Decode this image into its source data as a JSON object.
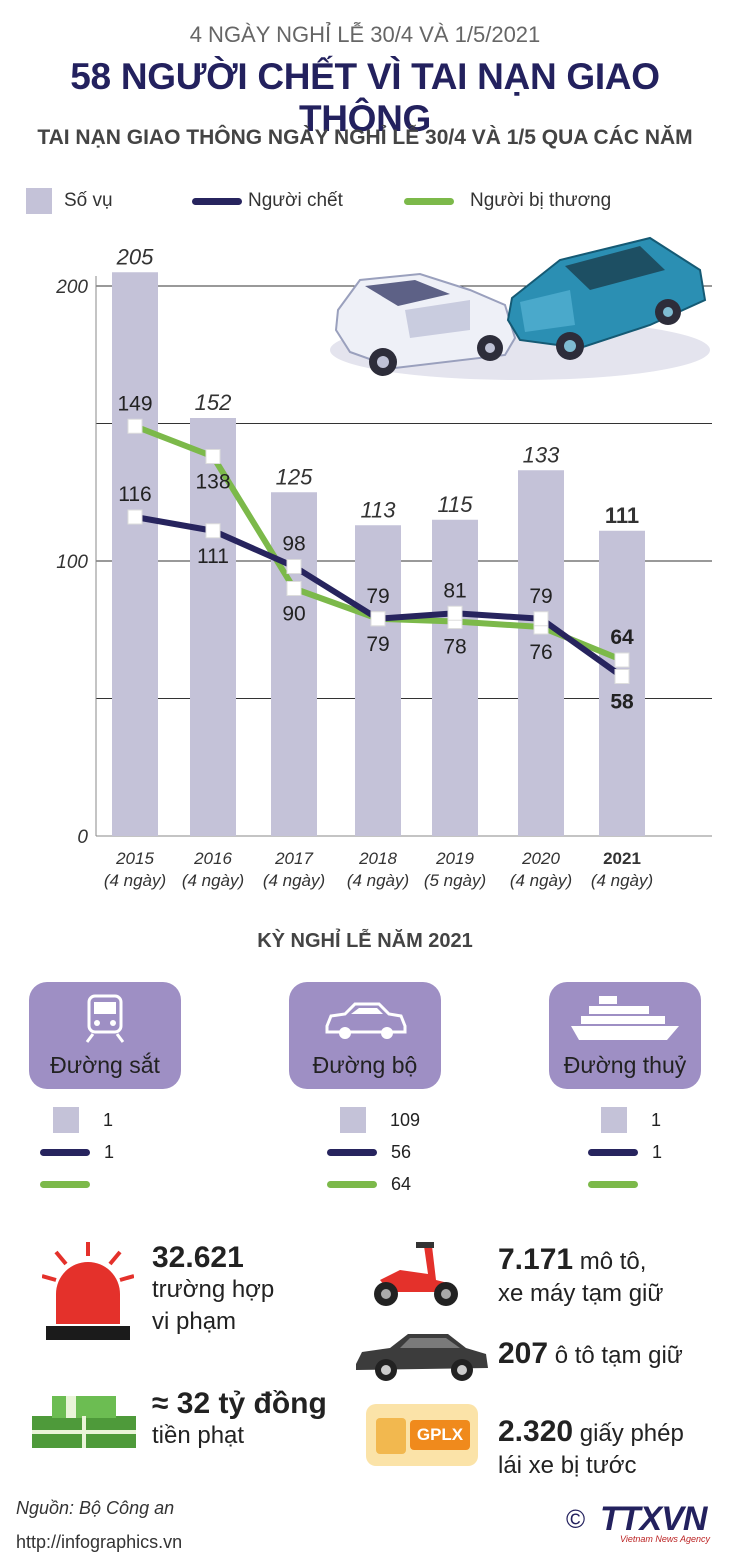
{
  "header": {
    "subtitle": "4 NGÀY NGHỈ LỄ 30/4 VÀ 1/5/2021",
    "title": "58 NGƯỜI CHẾT VÌ TAI NẠN GIAO THÔNG",
    "chart_title": "TAI NẠN GIAO THÔNG NGÀY NGHỈ LỄ 30/4 VÀ 1/5 QUA CÁC NĂM"
  },
  "legend": {
    "cases": "Số vụ",
    "deaths": "Người chết",
    "injured": "Người bị thương"
  },
  "colors": {
    "bar": "#c4c2d8",
    "deaths": "#27245e",
    "injured": "#7cb94a",
    "title": "#23215e",
    "card": "#9e8fc4"
  },
  "chart_data": {
    "type": "bar",
    "title": "TAI NẠN GIAO THÔNG NGÀY NGHỈ LỄ 30/4 VÀ 1/5 QUA CÁC NĂM",
    "categories": [
      "2015",
      "2016",
      "2017",
      "2018",
      "2019",
      "2020",
      "2021"
    ],
    "category_sublabels": [
      "(4 ngày)",
      "(4 ngày)",
      "(4 ngày)",
      "(4 ngày)",
      "(5 ngày)",
      "(4 ngày)",
      "(4 ngày)"
    ],
    "yticks": [
      "0",
      "100",
      "200"
    ],
    "ylim": [
      0,
      200
    ],
    "series": [
      {
        "name": "Số vụ",
        "kind": "bar",
        "values": [
          205,
          152,
          125,
          113,
          115,
          133,
          111
        ]
      },
      {
        "name": "Người chết",
        "kind": "line",
        "values": [
          116,
          111,
          98,
          79,
          81,
          79,
          58
        ]
      },
      {
        "name": "Người bị thương",
        "kind": "line",
        "values": [
          149,
          138,
          90,
          79,
          78,
          76,
          64
        ]
      }
    ]
  },
  "section_2021": {
    "title": "KỲ NGHỈ LỄ NĂM 2021",
    "modes": [
      {
        "label": "Đường sắt",
        "icon": "train-icon",
        "cases": "1",
        "deaths": "1",
        "injured": ""
      },
      {
        "label": "Đường bộ",
        "icon": "car-icon",
        "cases": "109",
        "deaths": "56",
        "injured": "64"
      },
      {
        "label": "Đường thuỷ",
        "icon": "ship-icon",
        "cases": "1",
        "deaths": "1",
        "injured": ""
      }
    ]
  },
  "facts": {
    "violations_num": "32.621",
    "violations_text1": "trường hợp",
    "violations_text2": "vi phạm",
    "fines_num": "≈ 32 tỷ đồng",
    "fines_text": "tiền phạt",
    "motorbikes_num": "7.171",
    "motorbikes_text1": "mô tô,",
    "motorbikes_text2": "xe máy tạm giữ",
    "cars_num": "207",
    "cars_text": "ô tô tạm giữ",
    "licenses_num": "2.320",
    "licenses_text1": "giấy phép",
    "licenses_text2": "lái xe bị tước",
    "license_card": "GPLX"
  },
  "footer": {
    "source": "Nguồn: Bộ Công an",
    "url": "http://infographics.vn",
    "copyright": "©",
    "agency": "TTXVN",
    "agency_sub": "Vietnam News Agency"
  }
}
